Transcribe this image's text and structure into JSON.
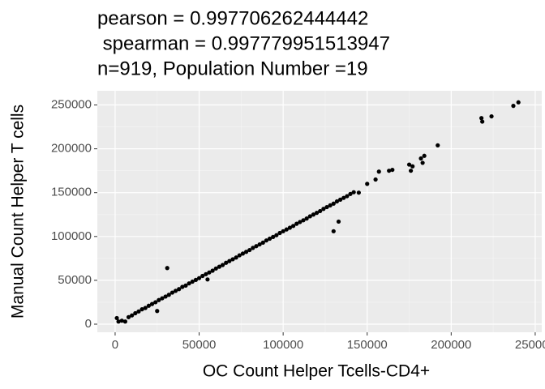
{
  "chart_data": {
    "type": "scatter",
    "title": [
      "pearson = 0.997706262444442",
      " spearman = 0.997779951513947",
      "n=919, Population Number =19"
    ],
    "xlabel": "OC Count Helper Tcells-CD4+",
    "ylabel": "Manual Count Helper T cells",
    "color": "#000000",
    "grid": true,
    "xlim": [
      -10600,
      253900
    ],
    "ylim": [
      -9240,
      266200
    ],
    "xticks": [
      0,
      50000,
      100000,
      150000,
      200000,
      250000
    ],
    "yticks": [
      0,
      50000,
      100000,
      150000,
      200000,
      250000
    ],
    "x": [
      1000,
      2000,
      4000,
      6000,
      8000,
      10000,
      12000,
      14000,
      16000,
      18000,
      20000,
      22000,
      24000,
      25000,
      26000,
      28000,
      30000,
      31000,
      32000,
      34000,
      36000,
      38000,
      40000,
      42000,
      44000,
      46000,
      48000,
      50000,
      52000,
      54000,
      55000,
      56000,
      58000,
      60000,
      62000,
      64000,
      66000,
      68000,
      70000,
      72000,
      74000,
      76000,
      78000,
      80000,
      82000,
      84000,
      86000,
      88000,
      90000,
      92000,
      94000,
      96000,
      98000,
      100000,
      102000,
      104000,
      106000,
      108000,
      110000,
      112000,
      114000,
      116000,
      118000,
      120000,
      122000,
      124000,
      126000,
      128000,
      130000,
      132000,
      130000,
      134000,
      136000,
      138000,
      133000,
      140000,
      142000,
      145000,
      150000,
      155000,
      157000,
      163000,
      165000,
      175000,
      177000,
      176000,
      182000,
      184000,
      183000,
      192000,
      218000,
      218500,
      224000,
      237000,
      240000
    ],
    "y": [
      7000,
      3000,
      4000,
      3000,
      8000,
      10000,
      12500,
      14500,
      17000,
      18500,
      21000,
      23000,
      25000,
      15000,
      27500,
      29500,
      31500,
      64000,
      33500,
      36000,
      38000,
      40000,
      42500,
      44000,
      46500,
      48500,
      50500,
      52500,
      55000,
      57000,
      51000,
      59000,
      61000,
      63500,
      65500,
      67500,
      70000,
      72000,
      74000,
      76000,
      78500,
      80500,
      82500,
      84500,
      87000,
      89000,
      91000,
      93000,
      95500,
      97500,
      99500,
      101500,
      104000,
      106000,
      108000,
      110000,
      112000,
      114500,
      116500,
      118500,
      120500,
      123000,
      125000,
      127000,
      129000,
      131500,
      133500,
      135500,
      137500,
      140000,
      106000,
      142000,
      144000,
      146000,
      117000,
      148500,
      150500,
      150000,
      160000,
      165000,
      174000,
      175000,
      176000,
      182000,
      180000,
      175000,
      189000,
      192000,
      184000,
      204000,
      235000,
      231000,
      237000,
      249000,
      253000
    ]
  }
}
